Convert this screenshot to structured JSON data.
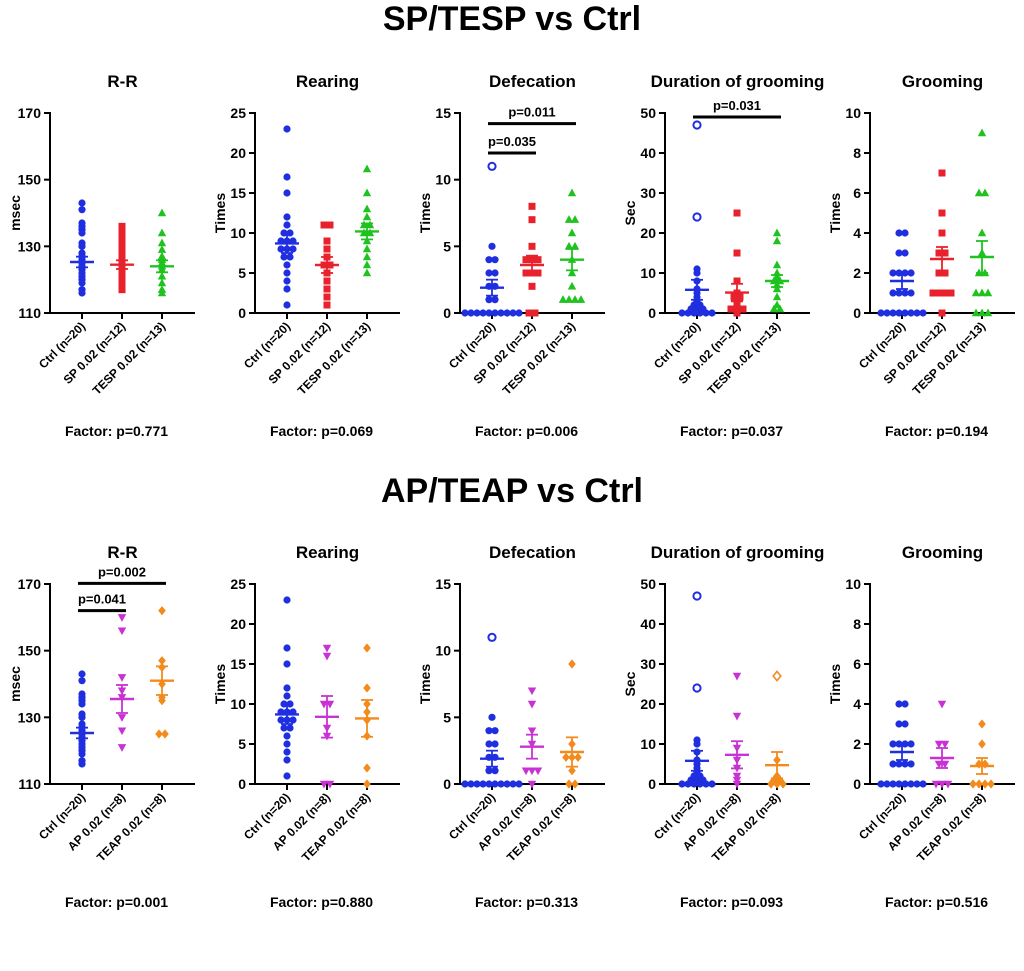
{
  "figure": {
    "top_title": "SP/TESP vs Ctrl",
    "bottom_title": "AP/TEAP vs Ctrl"
  },
  "colors": {
    "ctrl": "#1f2fe0",
    "sp": "#e8222c",
    "tesp": "#1fc21f",
    "ap": "#c832d4",
    "teap": "#f28a1c"
  },
  "chart_data": [
    {
      "type": "scatter",
      "title": "R-R",
      "ylabel": "msec",
      "ylim": [
        110,
        170
      ],
      "yticks": [
        110,
        130,
        150,
        170
      ],
      "categories": [
        "Ctrl (n=20)",
        "SP 0.02 (n=12)",
        "TESP 0.02 (n=13)"
      ],
      "factor": "Factor: p=0.771",
      "series": [
        {
          "name": "Ctrl (n=20)",
          "color": "#1f2fe0",
          "marker": "circle",
          "mean": 125.3,
          "sem": 1.6,
          "values": [
            143,
            141,
            137,
            136,
            135,
            134,
            131,
            130,
            128,
            127,
            126,
            125,
            124,
            123,
            122,
            121,
            120,
            119,
            117,
            116
          ],
          "outliers": []
        },
        {
          "name": "SP 0.02 (n=12)",
          "color": "#e8222c",
          "marker": "square",
          "mean": 124.5,
          "sem": 1.3,
          "values": [
            136,
            135,
            133,
            131,
            129,
            127,
            126,
            125,
            123,
            121,
            119,
            117
          ],
          "outliers": []
        },
        {
          "name": "TESP 0.02 (n=13)",
          "color": "#1fc21f",
          "marker": "triangle",
          "mean": 124,
          "sem": 1.8,
          "values": [
            140,
            134,
            131,
            129,
            127,
            126,
            125,
            124,
            123,
            121,
            119,
            117,
            116
          ],
          "outliers": []
        }
      ],
      "comparisons": []
    },
    {
      "type": "scatter",
      "title": "Rearing",
      "ylabel": "Times",
      "ylim": [
        0,
        25
      ],
      "yticks": [
        0,
        5,
        10,
        15,
        20,
        25
      ],
      "categories": [
        "Ctrl (n=20)",
        "SP 0.02 (n=12)",
        "TESP 0.02 (n=13)"
      ],
      "factor": "Factor: p=0.069",
      "series": [
        {
          "name": "Ctrl (n=20)",
          "color": "#1f2fe0",
          "marker": "circle",
          "mean": 8.7,
          "sem": 1.2,
          "values": [
            23,
            17,
            15,
            12,
            11,
            10,
            10,
            9,
            9,
            9,
            8,
            8,
            8,
            7,
            7,
            6,
            5,
            4,
            3,
            1
          ],
          "outliers": []
        },
        {
          "name": "SP 0.02 (n=12)",
          "color": "#e8222c",
          "marker": "square",
          "mean": 6,
          "sem": 1,
          "values": [
            11,
            11,
            9,
            8,
            7,
            6,
            6,
            5,
            4,
            3,
            2,
            1
          ],
          "outliers": []
        },
        {
          "name": "TESP 0.02 (n=13)",
          "color": "#1fc21f",
          "marker": "triangle",
          "mean": 10.2,
          "sem": 1,
          "values": [
            18,
            15,
            13,
            12,
            11,
            11,
            10,
            10,
            9,
            8,
            7,
            6,
            5
          ],
          "outliers": []
        }
      ],
      "comparisons": []
    },
    {
      "type": "scatter",
      "title": "Defecation",
      "ylabel": "Times",
      "ylim": [
        0,
        15
      ],
      "yticks": [
        0,
        5,
        10,
        15
      ],
      "categories": [
        "Ctrl (n=20)",
        "SP 0.02 (n=12)",
        "TESP 0.02 (n=13)"
      ],
      "factor": "Factor: p=0.006",
      "series": [
        {
          "name": "Ctrl (n=20)",
          "color": "#1f2fe0",
          "marker": "circle",
          "mean": 1.9,
          "sem": 0.6,
          "values": [
            5,
            4,
            4,
            3,
            3,
            2,
            2,
            1,
            1,
            0,
            0,
            0,
            0,
            0,
            0,
            0,
            0,
            0,
            0
          ],
          "outliers": [
            11
          ]
        },
        {
          "name": "SP 0.02 (n=12)",
          "color": "#e8222c",
          "marker": "square",
          "mean": 3.6,
          "sem": 0.7,
          "values": [
            8,
            7,
            5,
            4,
            4,
            4,
            3,
            3,
            3,
            2,
            0,
            0
          ],
          "outliers": []
        },
        {
          "name": "TESP 0.02 (n=13)",
          "color": "#1fc21f",
          "marker": "triangle",
          "mean": 4,
          "sem": 0.8,
          "values": [
            9,
            7,
            7,
            6,
            5,
            5,
            4,
            3,
            2,
            1,
            1,
            1,
            1
          ],
          "outliers": []
        }
      ],
      "comparisons": [
        {
          "from": 0,
          "to": 2,
          "y": 14.2,
          "label": "p=0.011"
        },
        {
          "from": 0,
          "to": 1,
          "y": 12,
          "label": "p=0.035"
        }
      ]
    },
    {
      "type": "scatter",
      "title": "Duration of grooming",
      "ylabel": "Sec",
      "ylim": [
        0,
        50
      ],
      "yticks": [
        0,
        10,
        20,
        30,
        40,
        50
      ],
      "categories": [
        "Ctrl (n=20)",
        "SP 0.02 (n=12)",
        "TESP 0.02 (n=13)"
      ],
      "factor": "Factor: p=0.037",
      "series": [
        {
          "name": "Ctrl (n=20)",
          "color": "#1f2fe0",
          "marker": "circle",
          "mean": 5.8,
          "sem": 2.5,
          "values": [
            11,
            10,
            8,
            6,
            5,
            4,
            3,
            2,
            2,
            1,
            1,
            1,
            0,
            0,
            0,
            0,
            0,
            0
          ],
          "outliers": [
            47,
            24
          ]
        },
        {
          "name": "SP 0.02 (n=12)",
          "color": "#e8222c",
          "marker": "square",
          "mean": 5.1,
          "sem": 2.2,
          "values": [
            25,
            15,
            8,
            5,
            4,
            4,
            3,
            2,
            1,
            1,
            1,
            0
          ],
          "outliers": []
        },
        {
          "name": "TESP 0.02 (n=13)",
          "color": "#1fc21f",
          "marker": "triangle",
          "mean": 8,
          "sem": 1.5,
          "values": [
            20,
            18,
            12,
            10,
            9,
            8,
            8,
            7,
            6,
            4,
            2,
            1,
            1
          ],
          "outliers": []
        }
      ],
      "comparisons": [
        {
          "from": 0,
          "to": 2,
          "y": 49,
          "label": "p=0.031"
        }
      ]
    },
    {
      "type": "scatter",
      "title": "Grooming",
      "ylabel": "Times",
      "ylim": [
        0,
        10
      ],
      "yticks": [
        0,
        2,
        4,
        6,
        8,
        10
      ],
      "categories": [
        "Ctrl (n=20)",
        "SP 0.02 (n=12)",
        "TESP 0.02 (n=13)"
      ],
      "factor": "Factor: p=0.194",
      "series": [
        {
          "name": "Ctrl (n=20)",
          "color": "#1f2fe0",
          "marker": "circle",
          "mean": 1.6,
          "sem": 0.4,
          "values": [
            4,
            4,
            3,
            3,
            2,
            2,
            2,
            2,
            1,
            1,
            1,
            1,
            0,
            0,
            0,
            0,
            0,
            0,
            0,
            0
          ],
          "outliers": []
        },
        {
          "name": "SP 0.02 (n=12)",
          "color": "#e8222c",
          "marker": "square",
          "mean": 2.7,
          "sem": 0.6,
          "values": [
            7,
            5,
            4,
            3,
            3,
            2,
            2,
            1,
            1,
            1,
            1,
            0
          ],
          "outliers": []
        },
        {
          "name": "TESP 0.02 (n=13)",
          "color": "#1fc21f",
          "marker": "triangle",
          "mean": 2.8,
          "sem": 0.8,
          "values": [
            9,
            6,
            6,
            4,
            3,
            2,
            2,
            1,
            1,
            1,
            0,
            0,
            0
          ],
          "outliers": []
        }
      ],
      "comparisons": []
    },
    {
      "type": "scatter",
      "title": "R-R",
      "ylabel": "msec",
      "ylim": [
        110,
        170
      ],
      "yticks": [
        110,
        130,
        150,
        170
      ],
      "categories": [
        "Ctrl (n=20)",
        "AP 0.02 (n=8)",
        "TEAP 0.02 (n=8)"
      ],
      "factor": "Factor: p=0.001",
      "series": [
        {
          "name": "Ctrl (n=20)",
          "color": "#1f2fe0",
          "marker": "circle",
          "mean": 125.3,
          "sem": 1.6,
          "values": [
            143,
            141,
            137,
            136,
            135,
            134,
            131,
            130,
            128,
            127,
            126,
            125,
            124,
            123,
            122,
            121,
            120,
            119,
            117,
            116
          ],
          "outliers": []
        },
        {
          "name": "AP 0.02 (n=8)",
          "color": "#c832d4",
          "marker": "triangle-down",
          "mean": 135.5,
          "sem": 4.2,
          "values": [
            160,
            156,
            142,
            138,
            136,
            130,
            126,
            121
          ],
          "outliers": []
        },
        {
          "name": "TEAP 0.02 (n=8)",
          "color": "#f28a1c",
          "marker": "diamond",
          "mean": 141,
          "sem": 4.3,
          "values": [
            162,
            147,
            145,
            140,
            136,
            135,
            125,
            125
          ],
          "outliers": []
        }
      ],
      "comparisons": [
        {
          "from": 0,
          "to": 2,
          "y": 170.2,
          "label": "p=0.002"
        },
        {
          "from": 0,
          "to": 1,
          "y": 162,
          "label": "p=0.041"
        }
      ]
    },
    {
      "type": "scatter",
      "title": "Rearing",
      "ylabel": "Times",
      "ylim": [
        0,
        25
      ],
      "yticks": [
        0,
        5,
        10,
        15,
        20,
        25
      ],
      "categories": [
        "Ctrl (n=20)",
        "AP 0.02 (n=8)",
        "TEAP 0.02 (n=8)"
      ],
      "factor": "Factor: p=0.880",
      "series": [
        {
          "name": "Ctrl (n=20)",
          "color": "#1f2fe0",
          "marker": "circle",
          "mean": 8.7,
          "sem": 1.2,
          "values": [
            23,
            17,
            15,
            12,
            11,
            10,
            10,
            9,
            9,
            9,
            8,
            8,
            8,
            7,
            7,
            6,
            5,
            4,
            3,
            1
          ],
          "outliers": []
        },
        {
          "name": "AP 0.02 (n=8)",
          "color": "#c832d4",
          "marker": "triangle-down",
          "mean": 8.4,
          "sem": 2.6,
          "values": [
            17,
            16,
            10,
            10,
            7,
            6,
            0,
            0
          ],
          "outliers": []
        },
        {
          "name": "TEAP 0.02 (n=8)",
          "color": "#f28a1c",
          "marker": "diamond",
          "mean": 8.2,
          "sem": 2.3,
          "values": [
            17,
            12,
            10,
            9,
            8,
            6,
            2,
            0
          ],
          "outliers": []
        }
      ],
      "comparisons": []
    },
    {
      "type": "scatter",
      "title": "Defecation",
      "ylabel": "Times",
      "ylim": [
        0,
        15
      ],
      "yticks": [
        0,
        5,
        10,
        15
      ],
      "categories": [
        "Ctrl (n=20)",
        "AP 0.02 (n=8)",
        "TEAP 0.02 (n=8)"
      ],
      "factor": "Factor: p=0.313",
      "series": [
        {
          "name": "Ctrl (n=20)",
          "color": "#1f2fe0",
          "marker": "circle",
          "mean": 1.9,
          "sem": 0.6,
          "values": [
            5,
            4,
            4,
            3,
            3,
            2,
            2,
            1,
            1,
            0,
            0,
            0,
            0,
            0,
            0,
            0,
            0,
            0,
            0
          ],
          "outliers": [
            11
          ]
        },
        {
          "name": "AP 0.02 (n=8)",
          "color": "#c832d4",
          "marker": "triangle-down",
          "mean": 2.8,
          "sem": 0.9,
          "values": [
            7,
            6,
            4,
            3,
            1,
            1,
            1,
            0
          ],
          "outliers": []
        },
        {
          "name": "TEAP 0.02 (n=8)",
          "color": "#f28a1c",
          "marker": "diamond",
          "mean": 2.4,
          "sem": 1.1,
          "values": [
            9,
            3,
            2,
            2,
            2,
            1,
            0,
            0
          ],
          "outliers": []
        }
      ],
      "comparisons": []
    },
    {
      "type": "scatter",
      "title": "Duration of grooming",
      "ylabel": "Sec",
      "ylim": [
        0,
        50
      ],
      "yticks": [
        0,
        10,
        20,
        30,
        40,
        50
      ],
      "categories": [
        "Ctrl (n=20)",
        "AP 0.02 (n=8)",
        "TEAP 0.02 (n=8)"
      ],
      "factor": "Factor: p=0.093",
      "series": [
        {
          "name": "Ctrl (n=20)",
          "color": "#1f2fe0",
          "marker": "circle",
          "mean": 5.8,
          "sem": 2.5,
          "values": [
            11,
            10,
            8,
            6,
            5,
            4,
            3,
            2,
            2,
            1,
            1,
            1,
            0,
            0,
            0,
            0,
            0,
            0
          ],
          "outliers": [
            47,
            24
          ]
        },
        {
          "name": "AP 0.02 (n=8)",
          "color": "#c832d4",
          "marker": "triangle-down",
          "mean": 7.3,
          "sem": 3.4,
          "values": [
            27,
            17,
            9,
            6,
            4,
            2,
            1,
            0
          ],
          "outliers": []
        },
        {
          "name": "TEAP 0.02 (n=8)",
          "color": "#f28a1c",
          "marker": "diamond",
          "mean": 4.7,
          "sem": 3.3,
          "values": [
            6,
            2,
            1,
            1,
            0,
            0,
            0
          ],
          "outliers": [
            27
          ]
        }
      ],
      "comparisons": []
    },
    {
      "type": "scatter",
      "title": "Grooming",
      "ylabel": "Times",
      "ylim": [
        0,
        10
      ],
      "yticks": [
        0,
        2,
        4,
        6,
        8,
        10
      ],
      "categories": [
        "Ctrl (n=20)",
        "AP 0.02 (n=8)",
        "TEAP 0.02 (n=8)"
      ],
      "factor": "Factor: p=0.516",
      "series": [
        {
          "name": "Ctrl (n=20)",
          "color": "#1f2fe0",
          "marker": "circle",
          "mean": 1.6,
          "sem": 0.4,
          "values": [
            4,
            4,
            3,
            3,
            2,
            2,
            2,
            2,
            1,
            1,
            1,
            1,
            0,
            0,
            0,
            0,
            0,
            0,
            0,
            0
          ],
          "outliers": []
        },
        {
          "name": "AP 0.02 (n=8)",
          "color": "#c832d4",
          "marker": "triangle-down",
          "mean": 1.3,
          "sem": 0.5,
          "values": [
            4,
            2,
            2,
            1,
            1,
            0,
            0,
            0
          ],
          "outliers": []
        },
        {
          "name": "TEAP 0.02 (n=8)",
          "color": "#f28a1c",
          "marker": "diamond",
          "mean": 0.9,
          "sem": 0.4,
          "values": [
            3,
            2,
            1,
            1,
            0,
            0,
            0,
            0
          ],
          "outliers": []
        }
      ],
      "comparisons": []
    }
  ]
}
